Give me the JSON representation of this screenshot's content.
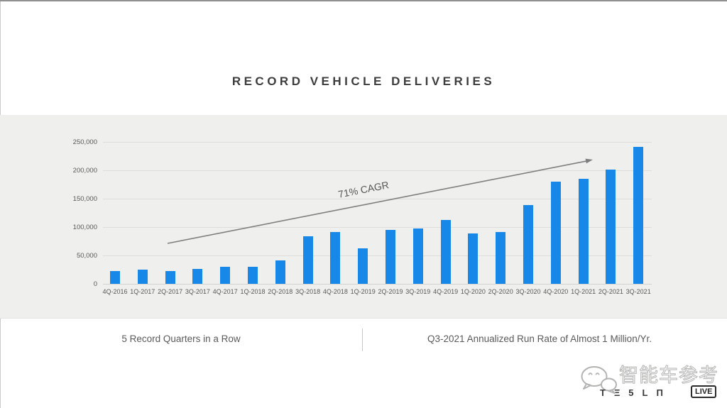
{
  "page": {
    "title": "RECORD VEHICLE DELIVERIES"
  },
  "chart_data": {
    "type": "bar",
    "title": "RECORD VEHICLE DELIVERIES",
    "categories": [
      "4Q-2016",
      "1Q-2017",
      "2Q-2017",
      "3Q-2017",
      "4Q-2017",
      "1Q-2018",
      "2Q-2018",
      "3Q-2018",
      "4Q-2018",
      "1Q-2019",
      "2Q-2019",
      "3Q-2019",
      "4Q-2019",
      "1Q-2020",
      "2Q-2020",
      "3Q-2020",
      "4Q-2020",
      "1Q-2021",
      "2Q-2021",
      "3Q-2021"
    ],
    "values": [
      22200,
      25000,
      22000,
      26150,
      29870,
      30000,
      40740,
      83500,
      90700,
      63000,
      95200,
      97000,
      112000,
      88400,
      90650,
      139300,
      180570,
      184800,
      201250,
      241300
    ],
    "xlabel": "",
    "ylabel": "",
    "ylim": [
      0,
      250000
    ],
    "ytick_interval": 50000,
    "ytick_labels": [
      "0",
      "50,000",
      "100,000",
      "150,000",
      "200,000",
      "250,000"
    ],
    "grid": true,
    "legend": "none",
    "bar_color": "#1787e8",
    "annotation": {
      "text": "71% CAGR",
      "type": "trend-arrow",
      "rotation_deg": -11
    }
  },
  "footnotes": {
    "left": "5 Record Quarters in a Row",
    "right": "Q3-2021 Annualized Run Rate of Almost 1 Million/Yr."
  },
  "watermark": {
    "brand_cn": "智能车参考",
    "brand_en_glyphs": "TΞ5LΠ",
    "live_label": "LIVE"
  },
  "colors": {
    "bar": "#1787e8",
    "band_background": "#efefed",
    "title_text": "#3d3d3d",
    "axis_text": "#595959",
    "caption_text": "#595959",
    "arrow": "#7f7f7f"
  }
}
